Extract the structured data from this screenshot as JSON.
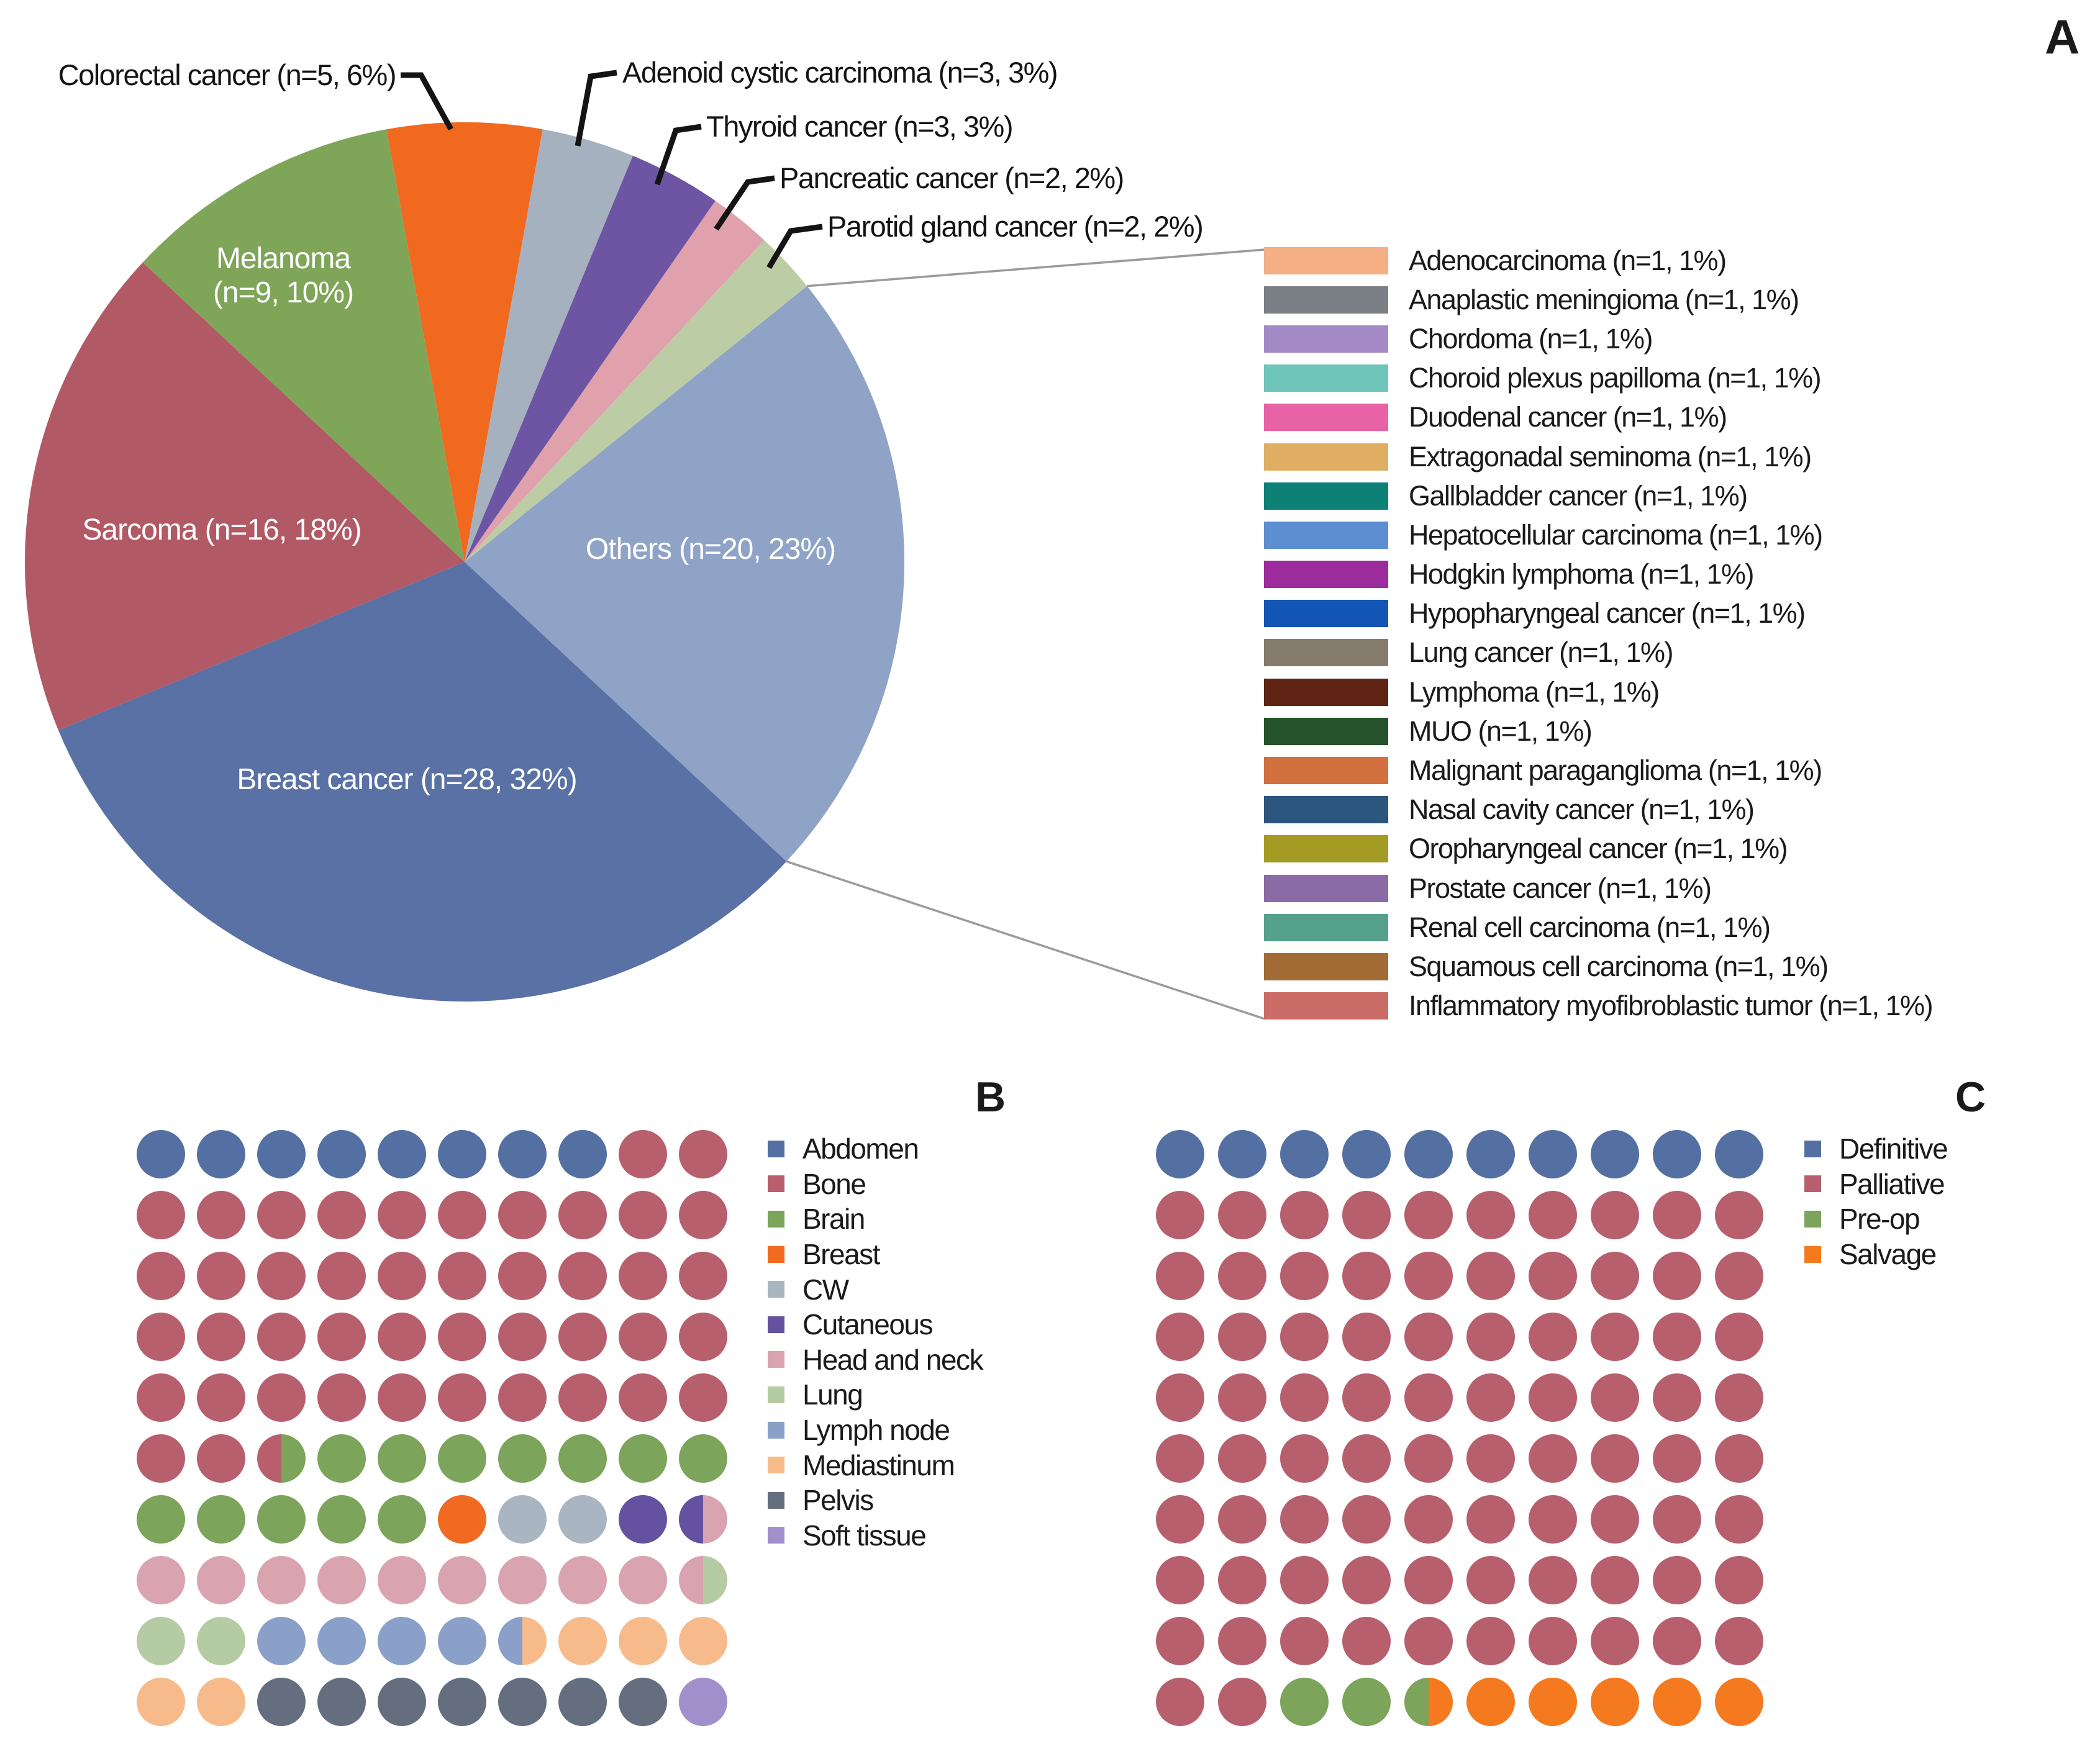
{
  "figure": {
    "panel_letters": {
      "a": "A",
      "b": "B",
      "c": "C"
    }
  },
  "chart_data": [
    {
      "id": "panel-a-pie",
      "type": "pie",
      "title": "",
      "unit": "patients",
      "total_n": 88,
      "legend_position": "right",
      "slices": [
        {
          "id": "colorectal",
          "name": "Colorectal cancer",
          "n": 5,
          "pct": 6,
          "label": "Colorectal cancer (n=5, 6%)",
          "color": "#F1681F",
          "label_placement": "callout"
        },
        {
          "id": "adenoid_cystic",
          "name": "Adenoid cystic carcinoma",
          "n": 3,
          "pct": 3,
          "label": "Adenoid cystic carcinoma (n=3, 3%)",
          "color": "#A6B1BF",
          "label_placement": "callout"
        },
        {
          "id": "thyroid",
          "name": "Thyroid cancer",
          "n": 3,
          "pct": 3,
          "label": "Thyroid cancer (n=3, 3%)",
          "color": "#6D55A3",
          "label_placement": "callout"
        },
        {
          "id": "pancreatic",
          "name": "Pancreatic cancer",
          "n": 2,
          "pct": 2,
          "label": "Pancreatic cancer (n=2, 2%)",
          "color": "#E0A0AC",
          "label_placement": "callout"
        },
        {
          "id": "parotid",
          "name": "Parotid gland cancer",
          "n": 2,
          "pct": 2,
          "label": "Parotid gland cancer (n=2, 2%)",
          "color": "#BCCDA5",
          "label_placement": "callout"
        },
        {
          "id": "others",
          "name": "Others",
          "n": 20,
          "pct": 23,
          "label": "Others (n=20, 23%)",
          "color": "#8FA3C7",
          "label_placement": "inside"
        },
        {
          "id": "breast",
          "name": "Breast cancer",
          "n": 28,
          "pct": 32,
          "label": "Breast cancer (n=28, 32%)",
          "color": "#5A71A5",
          "label_placement": "inside"
        },
        {
          "id": "sarcoma",
          "name": "Sarcoma",
          "n": 16,
          "pct": 18,
          "label": "Sarcoma (n=16, 18%)",
          "color": "#B25966",
          "label_placement": "inside"
        },
        {
          "id": "melanoma",
          "name": "Melanoma",
          "n": 9,
          "pct": 10,
          "label": "Melanoma (n=9, 10%)",
          "label_lines": [
            "Melanoma",
            "(n=9, 10%)"
          ],
          "color": "#7FA559",
          "label_placement": "inside"
        }
      ],
      "others_breakdown": [
        {
          "label": "Adenocarcinoma (n=1, 1%)",
          "color": "#F4AF85"
        },
        {
          "label": "Anaplastic meningioma (n=1, 1%)",
          "color": "#7B7F86"
        },
        {
          "label": "Chordoma (n=1, 1%)",
          "color": "#A489C7"
        },
        {
          "label": "Choroid plexus papilloma (n=1, 1%)",
          "color": "#6FC5BA"
        },
        {
          "label": "Duodenal cancer (n=1, 1%)",
          "color": "#E763A5"
        },
        {
          "label": "Extragonadal seminoma (n=1, 1%)",
          "color": "#DFAE63"
        },
        {
          "label": "Gallbladder cancer (n=1, 1%)",
          "color": "#0E8176"
        },
        {
          "label": "Hepatocellular carcinoma (n=1, 1%)",
          "color": "#5D8ED1"
        },
        {
          "label": "Hodgkin lymphoma (n=1, 1%)",
          "color": "#9C2C9C"
        },
        {
          "label": "Hypopharyngeal cancer (n=1, 1%)",
          "color": "#1355B4"
        },
        {
          "label": "Lung cancer (n=1, 1%)",
          "color": "#847B6D"
        },
        {
          "label": "Lymphoma (n=1, 1%)",
          "color": "#5F2413"
        },
        {
          "label": "MUO (n=1, 1%)",
          "color": "#26522B"
        },
        {
          "label": "Malignant paraganglioma (n=1, 1%)",
          "color": "#D16F3F"
        },
        {
          "label": "Nasal cavity cancer (n=1, 1%)",
          "color": "#2C567D"
        },
        {
          "label": "Oropharyngeal cancer (n=1, 1%)",
          "color": "#A39B24"
        },
        {
          "label": "Prostate cancer (n=1, 1%)",
          "color": "#8A6BA6"
        },
        {
          "label": "Renal cell carcinoma (n=1, 1%)",
          "color": "#56A189"
        },
        {
          "label": "Squamous cell carcinoma (n=1, 1%)",
          "color": "#A26B35"
        },
        {
          "label": "Inflammatory myofibroblastic tumor (n=1, 1%)",
          "color": "#CA6B66"
        }
      ]
    },
    {
      "id": "panel-b-waffle",
      "type": "waffle",
      "title": "",
      "unit": "percent-per-circle",
      "grid": "10x10",
      "legend_position": "right",
      "legend": [
        {
          "key": "ab",
          "label": "Abdomen",
          "color": "#5470A2"
        },
        {
          "key": "bo",
          "label": "Bone",
          "color": "#B75F6D"
        },
        {
          "key": "br",
          "label": "Brain",
          "color": "#7CA45A"
        },
        {
          "key": "bre",
          "label": "Breast",
          "color": "#F06A21"
        },
        {
          "key": "cw",
          "label": "CW",
          "color": "#A9B5C1"
        },
        {
          "key": "cu",
          "label": "Cutaneous",
          "color": "#64519F"
        },
        {
          "key": "hn",
          "label": "Head and neck",
          "color": "#D9A3AF"
        },
        {
          "key": "lu",
          "label": "Lung",
          "color": "#B5CBA3"
        },
        {
          "key": "ly",
          "label": "Lymph node",
          "color": "#8BA0C9"
        },
        {
          "key": "me",
          "label": "Mediastinum",
          "color": "#F7BA8B"
        },
        {
          "key": "pe",
          "label": "Pelvis",
          "color": "#646E7E"
        },
        {
          "key": "st",
          "label": "Soft tissue",
          "color": "#A18FCC"
        }
      ],
      "totals_pct": {
        "Abdomen": 8,
        "Bone": 44.5,
        "Brain": 12.5,
        "Breast": 1,
        "CW": 2,
        "Cutaneous": 1.5,
        "Head and neck": 10,
        "Lung": 2.5,
        "Lymph node": 4.5,
        "Mediastinum": 5.5,
        "Pelvis": 7,
        "Soft tissue": 1
      },
      "rows": [
        [
          "ab",
          "ab",
          "ab",
          "ab",
          "ab",
          "ab",
          "ab",
          "ab",
          "bo",
          "bo"
        ],
        [
          "bo",
          "bo",
          "bo",
          "bo",
          "bo",
          "bo",
          "bo",
          "bo",
          "bo",
          "bo"
        ],
        [
          "bo",
          "bo",
          "bo",
          "bo",
          "bo",
          "bo",
          "bo",
          "bo",
          "bo",
          "bo"
        ],
        [
          "bo",
          "bo",
          "bo",
          "bo",
          "bo",
          "bo",
          "bo",
          "bo",
          "bo",
          "bo"
        ],
        [
          "bo",
          "bo",
          "bo",
          "bo",
          "bo",
          "bo",
          "bo",
          "bo",
          "bo",
          "bo"
        ],
        [
          "bo",
          "bo",
          "bo/br",
          "br",
          "br",
          "br",
          "br",
          "br",
          "br",
          "br"
        ],
        [
          "br",
          "br",
          "br",
          "br",
          "br",
          "bre",
          "cw",
          "cw",
          "cu",
          "cu/hn"
        ],
        [
          "hn",
          "hn",
          "hn",
          "hn",
          "hn",
          "hn",
          "hn",
          "hn",
          "hn",
          "hn/lu"
        ],
        [
          "lu",
          "lu",
          "ly",
          "ly",
          "ly",
          "ly",
          "ly/me",
          "me",
          "me",
          "me"
        ],
        [
          "me",
          "me",
          "pe",
          "pe",
          "pe",
          "pe",
          "pe",
          "pe",
          "pe",
          "st"
        ]
      ]
    },
    {
      "id": "panel-c-waffle",
      "type": "waffle",
      "title": "",
      "unit": "percent-per-circle",
      "grid": "10x10",
      "legend_position": "right",
      "legend": [
        {
          "key": "de",
          "label": "Definitive",
          "color": "#5470A2"
        },
        {
          "key": "pa",
          "label": "Palliative",
          "color": "#B75F6D"
        },
        {
          "key": "pr",
          "label": "Pre-op",
          "color": "#7CA45A"
        },
        {
          "key": "sa",
          "label": "Salvage",
          "color": "#F4791F"
        }
      ],
      "totals_pct": {
        "Definitive": 10,
        "Palliative": 82,
        "Pre-op": 2.5,
        "Salvage": 5.5
      },
      "rows": [
        [
          "de",
          "de",
          "de",
          "de",
          "de",
          "de",
          "de",
          "de",
          "de",
          "de"
        ],
        [
          "pa",
          "pa",
          "pa",
          "pa",
          "pa",
          "pa",
          "pa",
          "pa",
          "pa",
          "pa"
        ],
        [
          "pa",
          "pa",
          "pa",
          "pa",
          "pa",
          "pa",
          "pa",
          "pa",
          "pa",
          "pa"
        ],
        [
          "pa",
          "pa",
          "pa",
          "pa",
          "pa",
          "pa",
          "pa",
          "pa",
          "pa",
          "pa"
        ],
        [
          "pa",
          "pa",
          "pa",
          "pa",
          "pa",
          "pa",
          "pa",
          "pa",
          "pa",
          "pa"
        ],
        [
          "pa",
          "pa",
          "pa",
          "pa",
          "pa",
          "pa",
          "pa",
          "pa",
          "pa",
          "pa"
        ],
        [
          "pa",
          "pa",
          "pa",
          "pa",
          "pa",
          "pa",
          "pa",
          "pa",
          "pa",
          "pa"
        ],
        [
          "pa",
          "pa",
          "pa",
          "pa",
          "pa",
          "pa",
          "pa",
          "pa",
          "pa",
          "pa"
        ],
        [
          "pa",
          "pa",
          "pa",
          "pa",
          "pa",
          "pa",
          "pa",
          "pa",
          "pa",
          "pa"
        ],
        [
          "pa",
          "pa",
          "pr",
          "pr",
          "pr/sa",
          "sa",
          "sa",
          "sa",
          "sa",
          "sa"
        ]
      ]
    }
  ]
}
